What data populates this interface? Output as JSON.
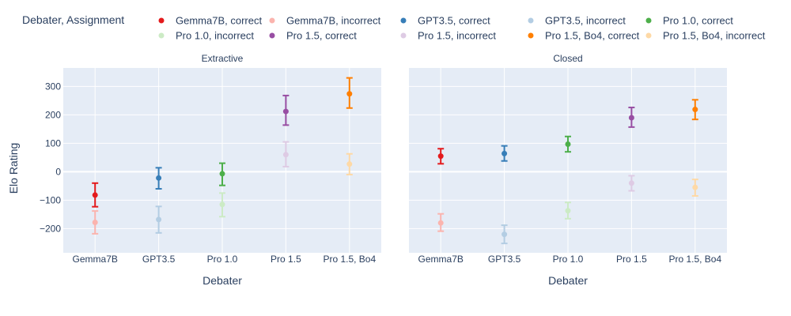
{
  "chart_data": {
    "type": "scatter",
    "legend_title": "Debater, Assignment",
    "ylabel": "Elo Rating",
    "xlabel": "Debater",
    "ylim": [
      -285,
      365
    ],
    "yticks": [
      -200,
      -100,
      0,
      100,
      200,
      300
    ],
    "ytick_labels": [
      "−200",
      "−100",
      "0",
      "100",
      "200",
      "300"
    ],
    "categories": [
      "Gemma7B",
      "GPT3.5",
      "Pro 1.0",
      "Pro 1.5",
      "Pro 1.5, Bo4"
    ],
    "series": [
      {
        "name": "Gemma7B, correct",
        "color": "#e41a1c",
        "category": "Gemma7B"
      },
      {
        "name": "Gemma7B, incorrect",
        "color": "#fbb4ae",
        "category": "Gemma7B"
      },
      {
        "name": "GPT3.5, correct",
        "color": "#377eb8",
        "category": "GPT3.5"
      },
      {
        "name": "GPT3.5, incorrect",
        "color": "#b3cde3",
        "category": "GPT3.5"
      },
      {
        "name": "Pro 1.0, correct",
        "color": "#4daf4a",
        "category": "Pro 1.0"
      },
      {
        "name": "Pro 1.0, incorrect",
        "color": "#ccebc5",
        "category": "Pro 1.0"
      },
      {
        "name": "Pro 1.5, correct",
        "color": "#984ea3",
        "category": "Pro 1.5"
      },
      {
        "name": "Pro 1.5, incorrect",
        "color": "#decbe4",
        "category": "Pro 1.5"
      },
      {
        "name": "Pro 1.5, Bo4, correct",
        "color": "#ff7f00",
        "category": "Pro 1.5, Bo4"
      },
      {
        "name": "Pro 1.5, Bo4, incorrect",
        "color": "#fed9a6",
        "category": "Pro 1.5, Bo4"
      }
    ],
    "facets": [
      {
        "title": "Extractive",
        "points": [
          {
            "series": 0,
            "y": -82,
            "lo": -123,
            "hi": -40
          },
          {
            "series": 1,
            "y": -178,
            "lo": -218,
            "hi": -138
          },
          {
            "series": 2,
            "y": -22,
            "lo": -60,
            "hi": 14
          },
          {
            "series": 3,
            "y": -168,
            "lo": -215,
            "hi": -122
          },
          {
            "series": 4,
            "y": -7,
            "lo": -48,
            "hi": 30
          },
          {
            "series": 5,
            "y": -115,
            "lo": -158,
            "hi": -75
          },
          {
            "series": 6,
            "y": 212,
            "lo": 164,
            "hi": 268
          },
          {
            "series": 7,
            "y": 60,
            "lo": 18,
            "hi": 105
          },
          {
            "series": 8,
            "y": 274,
            "lo": 224,
            "hi": 330
          },
          {
            "series": 9,
            "y": 27,
            "lo": -10,
            "hi": 63
          }
        ]
      },
      {
        "title": "Closed",
        "points": [
          {
            "series": 0,
            "y": 55,
            "lo": 28,
            "hi": 81
          },
          {
            "series": 1,
            "y": -180,
            "lo": -209,
            "hi": -148
          },
          {
            "series": 2,
            "y": 64,
            "lo": 38,
            "hi": 91
          },
          {
            "series": 3,
            "y": -220,
            "lo": -252,
            "hi": -188
          },
          {
            "series": 4,
            "y": 97,
            "lo": 70,
            "hi": 124
          },
          {
            "series": 5,
            "y": -137,
            "lo": -165,
            "hi": -108
          },
          {
            "series": 6,
            "y": 190,
            "lo": 157,
            "hi": 226
          },
          {
            "series": 7,
            "y": -40,
            "lo": -67,
            "hi": -14
          },
          {
            "series": 8,
            "y": 219,
            "lo": 184,
            "hi": 253
          },
          {
            "series": 9,
            "y": -55,
            "lo": -85,
            "hi": -27
          }
        ]
      }
    ]
  }
}
